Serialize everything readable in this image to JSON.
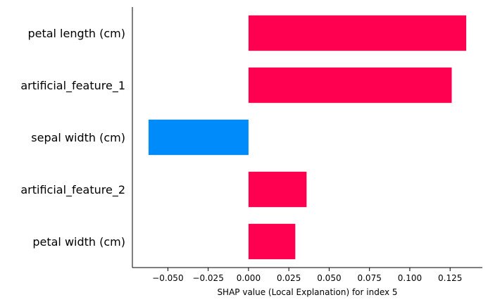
{
  "chart_data": {
    "type": "bar",
    "orientation": "horizontal",
    "categories": [
      "petal length (cm)",
      "artificial_feature_1",
      "sepal width (cm)",
      "artificial_feature_2",
      "petal width (cm)"
    ],
    "values": [
      0.135,
      0.126,
      -0.062,
      0.036,
      0.029
    ],
    "xlabel": "SHAP value (Local Explanation) for index 5",
    "ylabel": "",
    "xlim": [
      -0.072,
      0.145
    ],
    "xticks": [
      -0.05,
      -0.025,
      0.0,
      0.025,
      0.05,
      0.075,
      0.1,
      0.125
    ],
    "xtick_labels": [
      "−0.050",
      "−0.025",
      "0.000",
      "0.025",
      "0.050",
      "0.075",
      "0.100",
      "0.125"
    ],
    "grid": false,
    "colors": {
      "positive": "#ff0051",
      "negative": "#008bfb",
      "axis": "#000000"
    }
  }
}
